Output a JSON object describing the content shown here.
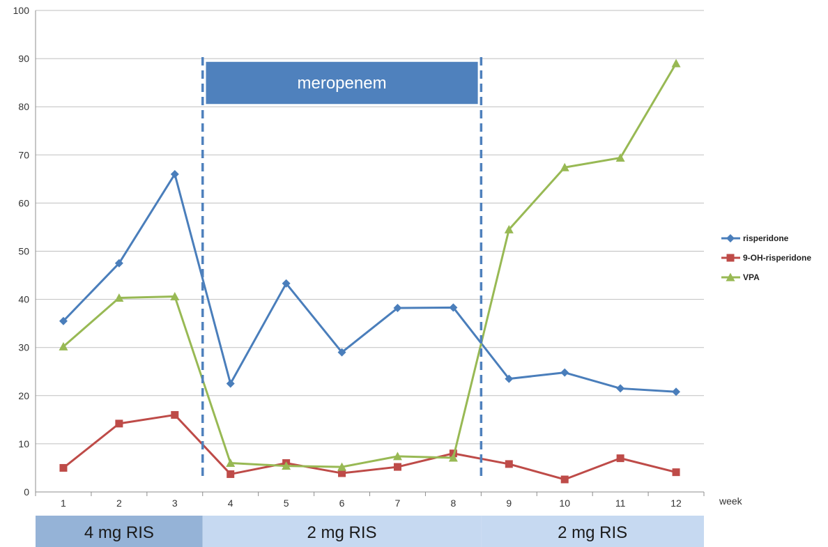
{
  "chart_data": {
    "type": "line",
    "title": "",
    "xlabel": "week",
    "ylabel": "",
    "categories": [
      "1",
      "2",
      "3",
      "4",
      "5",
      "6",
      "7",
      "8",
      "9",
      "10",
      "11",
      "12"
    ],
    "ylim": [
      0,
      100
    ],
    "yticks": [
      0,
      10,
      20,
      30,
      40,
      50,
      60,
      70,
      80,
      90,
      100
    ],
    "grid": true,
    "legend_position": "right",
    "series": [
      {
        "name": "risperidone",
        "color": "#4a7ebb",
        "marker": "diamond",
        "values": [
          35.5,
          47.5,
          66,
          22.5,
          43.3,
          29,
          38.2,
          38.3,
          23.5,
          24.8,
          21.5,
          20.8
        ]
      },
      {
        "name": "9-OH-risperidone",
        "color": "#be4b48",
        "marker": "square",
        "values": [
          5,
          14.2,
          16,
          3.7,
          6,
          3.9,
          5.2,
          8,
          5.8,
          2.6,
          7,
          4.1
        ]
      },
      {
        "name": "VPA",
        "color": "#98b954",
        "marker": "triangle",
        "values": [
          30.2,
          40.3,
          40.6,
          6,
          5.4,
          5.2,
          7.4,
          7.1,
          54.5,
          67.4,
          69.4,
          89
        ]
      }
    ],
    "annotations": {
      "drug_box": {
        "label": "meropenem",
        "color": "#4f81bd",
        "from_week": "4",
        "to_week": "8"
      },
      "phases": [
        {
          "label": "4 mg RIS",
          "weeks": [
            "1",
            "3"
          ],
          "color": "#95b3d7"
        },
        {
          "label": "2 mg RIS",
          "weeks": [
            "4",
            "8"
          ],
          "color": "#c6d9f1"
        },
        {
          "label": "2 mg RIS",
          "weeks": [
            "9",
            "12"
          ],
          "color": "#c6d9f1"
        }
      ]
    }
  }
}
